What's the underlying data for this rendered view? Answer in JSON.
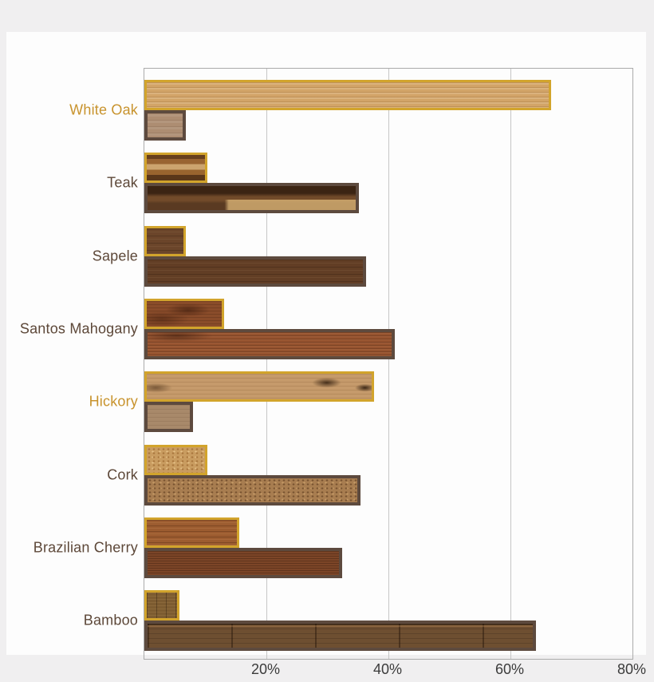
{
  "style": {
    "page_background": "#f0eff0",
    "panel_background": "#fdfdfd",
    "plot_border": "#ababab",
    "gridline": "#c6c6c6",
    "tick_text": "#3b3b3b",
    "series1_outline": "#d2a42c",
    "series2_outline": "#5d4a3e",
    "highlight_label": "#c8932d",
    "label": "#5d4839"
  },
  "chart_data": {
    "type": "bar",
    "orientation": "horizontal",
    "title": "",
    "categories": [
      "White Oak",
      "Teak",
      "Sapele",
      "Santos Mahogany",
      "Hickory",
      "Cork",
      "Brazilian Cherry",
      "Bamboo"
    ],
    "series": [
      {
        "name": "series-1-gold-outline",
        "values": [
          66.7,
          10.3,
          6.8,
          13.1,
          37.6,
          10.3,
          15.6,
          5.7
        ]
      },
      {
        "name": "series-2-brown-outline",
        "values": [
          6.8,
          35.2,
          36.4,
          41.1,
          8.0,
          35.4,
          32.4,
          64.2
        ]
      }
    ],
    "xlim": [
      0,
      80
    ],
    "x_tick_labels": [
      "20%",
      "40%",
      "60%",
      "80%"
    ],
    "x_tick_values": [
      20,
      40,
      60,
      80
    ],
    "grid": "vertical-gridlines",
    "legend": "none",
    "highlighted_categories": [
      "White Oak",
      "Hickory"
    ],
    "category_label_colors": [
      "#c8932d",
      "#5d4839",
      "#5d4839",
      "#5d4839",
      "#c8932d",
      "#5d4839",
      "#5d4839",
      "#5d4839"
    ],
    "bar_fill_colors": [
      [
        "#d2a468",
        "#ad8d72"
      ],
      [
        "#9a6632",
        "#5a3a22"
      ],
      [
        "#6b452a",
        "#623e25"
      ],
      [
        "#8a4c2a",
        "#96532f"
      ],
      [
        "#c59a6b",
        "#a8896a"
      ],
      [
        "#c99c60",
        "#a87d50"
      ],
      [
        "#9c5c30",
        "#7c4527"
      ],
      [
        "#7d5c31",
        "#6e4f31"
      ]
    ]
  }
}
